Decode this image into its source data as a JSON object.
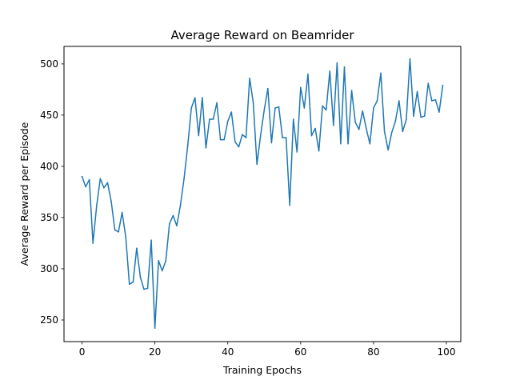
{
  "chart_data": {
    "type": "line",
    "title": "Average Reward on Beamrider",
    "xlabel": "Training Epochs",
    "ylabel": "Average Reward per Episode",
    "xlim": [
      -4.95,
      103.95
    ],
    "ylim": [
      228.9,
      517.1
    ],
    "xticks": [
      0,
      20,
      40,
      60,
      80,
      100
    ],
    "yticks": [
      250,
      300,
      350,
      400,
      450,
      500
    ],
    "grid": false,
    "series": [
      {
        "color": "#1f77b4",
        "x": [
          0,
          1,
          2,
          3,
          4,
          5,
          6,
          7,
          8,
          9,
          10,
          11,
          12,
          13,
          14,
          15,
          16,
          17,
          18,
          19,
          20,
          21,
          22,
          23,
          24,
          25,
          26,
          27,
          28,
          29,
          30,
          31,
          32,
          33,
          34,
          35,
          36,
          37,
          38,
          39,
          40,
          41,
          42,
          43,
          44,
          45,
          46,
          47,
          48,
          49,
          50,
          51,
          52,
          53,
          54,
          55,
          56,
          57,
          58,
          59,
          60,
          61,
          62,
          63,
          64,
          65,
          66,
          67,
          68,
          69,
          70,
          71,
          72,
          73,
          74,
          75,
          76,
          77,
          78,
          79,
          80,
          81,
          82,
          83,
          84,
          85,
          86,
          87,
          88,
          89,
          90,
          91,
          92,
          93,
          94,
          95,
          96,
          97,
          98,
          99
        ],
        "y": [
          390,
          380,
          387,
          325,
          361,
          388,
          379,
          384,
          366,
          338,
          336,
          355,
          331,
          285,
          287,
          320,
          292,
          280,
          281,
          328,
          242,
          308,
          298,
          308,
          344,
          352,
          342,
          362,
          388,
          420,
          457,
          467,
          430,
          467,
          418,
          446,
          446,
          462,
          426,
          426,
          444,
          453,
          424,
          419,
          431,
          428,
          486,
          462,
          402,
          430,
          455,
          476,
          423,
          457,
          458,
          428,
          428,
          362,
          446,
          414,
          477,
          457,
          490,
          430,
          437,
          415,
          459,
          455,
          493,
          440,
          501,
          422,
          497,
          422,
          474,
          443,
          436,
          454,
          437,
          422,
          457,
          464,
          491,
          434,
          416,
          433,
          444,
          464,
          434,
          446,
          505,
          449,
          473,
          448,
          449,
          481,
          464,
          465,
          453,
          479
        ]
      }
    ]
  }
}
